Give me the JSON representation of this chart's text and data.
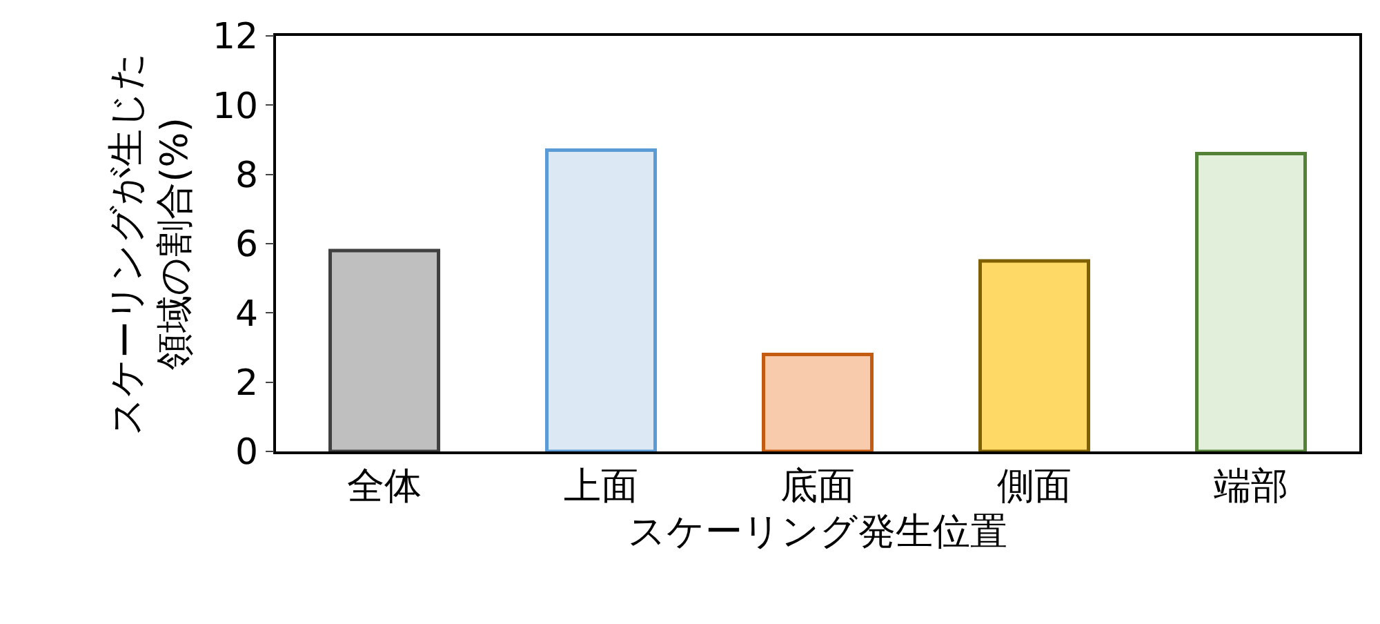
{
  "chart_data": {
    "type": "bar",
    "categories": [
      "全体",
      "上面",
      "底面",
      "側面",
      "端部"
    ],
    "values": [
      5.8,
      8.7,
      2.8,
      5.5,
      8.6
    ],
    "colors": [
      "#bfbfbf",
      "#dde8f5",
      "#f8cbad",
      "#ffd966",
      "#e2efda"
    ],
    "xlabel": "スケーリング発生位置",
    "ylabel": "スケーリングが生じた領域の割合(%)",
    "ylim": [
      0,
      12
    ],
    "yticks": [
      0,
      2,
      4,
      6,
      8,
      10,
      12
    ]
  }
}
